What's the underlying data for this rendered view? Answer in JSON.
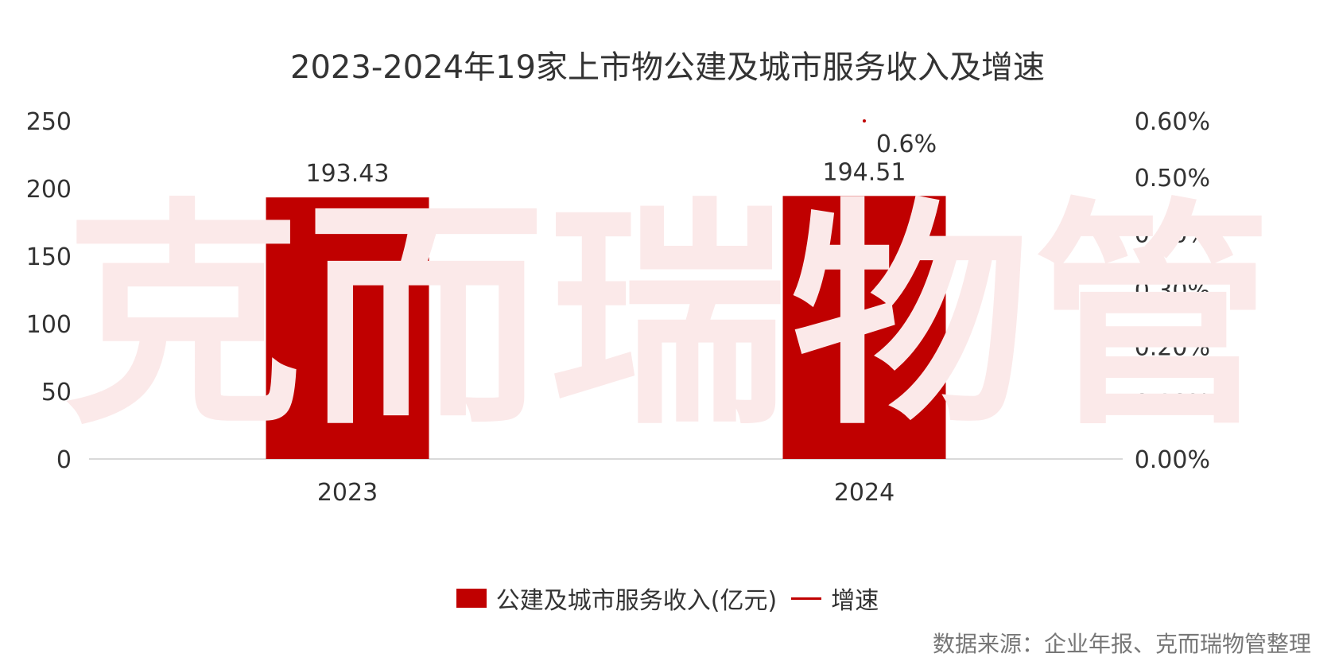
{
  "title": "2023-2024年19家上市物公建及城市服务收入及增速",
  "watermark": "克而瑞物管",
  "source": "数据来源：企业年报、克而瑞物管整理",
  "legend": {
    "bar_label": "公建及城市服务收入(亿元)",
    "line_label": "增速"
  },
  "colors": {
    "bar": "#c00000",
    "line": "#c00000",
    "axis_text": "#333333",
    "baseline": "#d9d9d9"
  },
  "chart_data": {
    "type": "bar",
    "categories": [
      "2023",
      "2024"
    ],
    "series": [
      {
        "name": "公建及城市服务收入(亿元)",
        "type": "bar",
        "axis": "left",
        "values": [
          193.43,
          194.51
        ],
        "labels": [
          "193.43",
          "194.51"
        ]
      },
      {
        "name": "增速",
        "type": "line",
        "axis": "right",
        "values": [
          null,
          0.6
        ],
        "labels": [
          "",
          "0.6%"
        ]
      }
    ],
    "y_left": {
      "ylim": [
        0,
        250
      ],
      "ticks": [
        0,
        50,
        100,
        150,
        200,
        250
      ],
      "tick_labels": [
        "0",
        "50",
        "100",
        "150",
        "200",
        "250"
      ]
    },
    "y_right": {
      "ylim": [
        0,
        0.6
      ],
      "ticks": [
        0,
        0.1,
        0.2,
        0.3,
        0.4,
        0.5,
        0.6
      ],
      "tick_labels": [
        "0.00%",
        "0.10%",
        "0.20%",
        "0.30%",
        "0.40%",
        "0.50%",
        "0.60%"
      ]
    },
    "legend_position": "bottom",
    "grid": false
  }
}
